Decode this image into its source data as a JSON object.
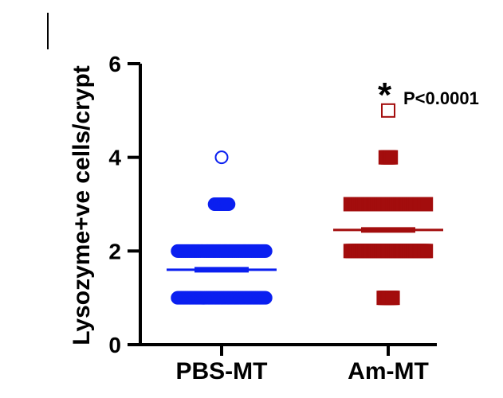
{
  "chart_data": {
    "type": "scatter",
    "ylabel": "Lysozyme+ve cells/crypt",
    "ylim": [
      0,
      6
    ],
    "yticks": [
      0,
      2,
      4,
      6
    ],
    "categories": [
      "PBS-MT",
      "Am-MT"
    ],
    "series": [
      {
        "category": "PBS-MT",
        "color": "#0a1ff0",
        "marker": "circle",
        "points": [
          {
            "y": 1,
            "count": 70
          },
          {
            "y": 2,
            "count": 70
          },
          {
            "y": 3,
            "count": 12
          },
          {
            "y": 4,
            "count": 1
          }
        ],
        "mean": 1.6
      },
      {
        "category": "Am-MT",
        "color": "#a30d0d",
        "marker": "square",
        "points": [
          {
            "y": 1,
            "count": 8
          },
          {
            "y": 2,
            "count": 60
          },
          {
            "y": 3,
            "count": 60
          },
          {
            "y": 4,
            "count": 5
          },
          {
            "y": 5,
            "count": 1
          }
        ],
        "mean": 2.45
      }
    ],
    "annotation": {
      "star": "*",
      "text": "P<0.0001"
    }
  }
}
